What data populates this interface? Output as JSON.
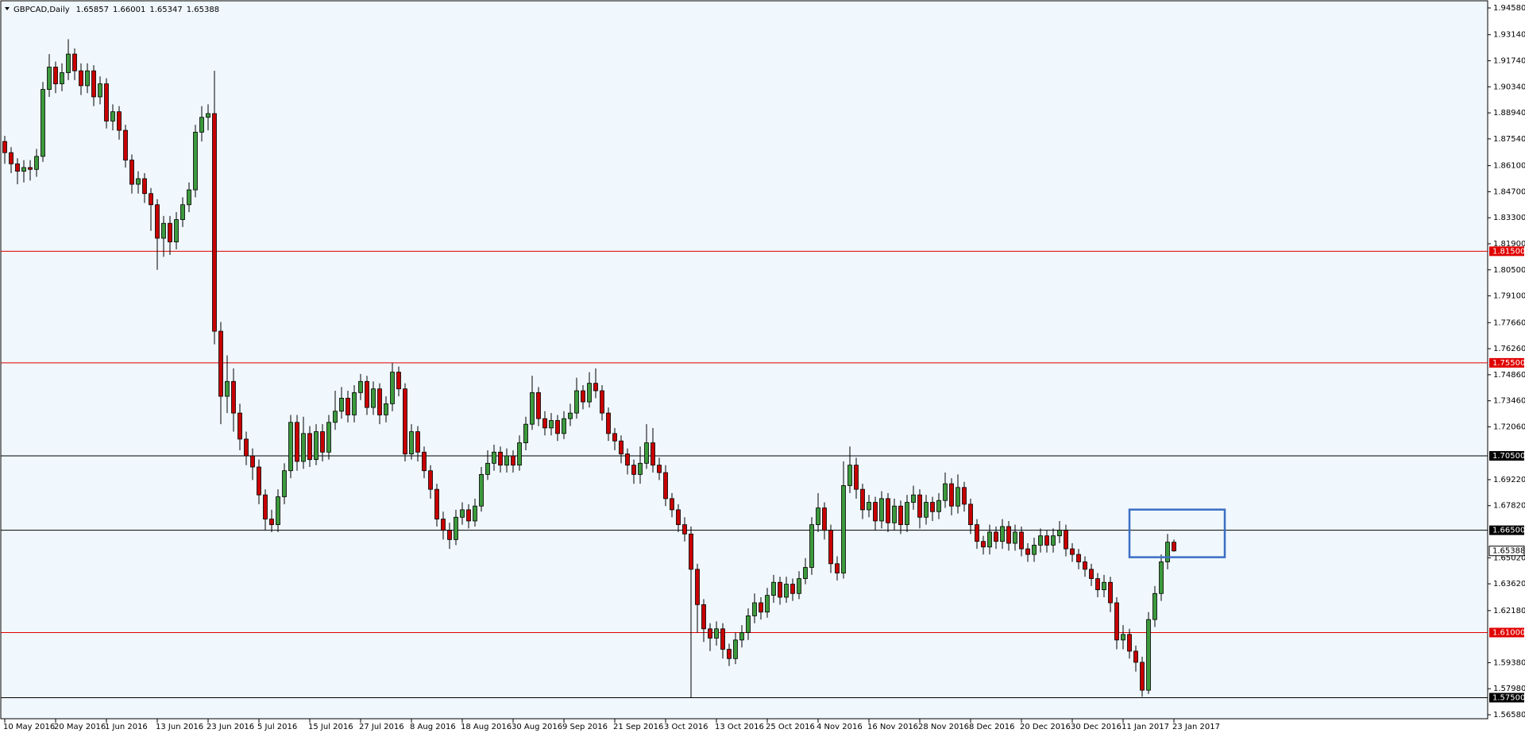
{
  "chart_data": {
    "type": "candlestick",
    "symbol": "GBPCAD,Daily",
    "categories": [
      "10 May 2016",
      null,
      null,
      null,
      null,
      null,
      null,
      null,
      "20 May 2016",
      null,
      null,
      null,
      null,
      null,
      null,
      null,
      "1 Jun 2016",
      null,
      null,
      null,
      null,
      null,
      null,
      null,
      "13 Jun 2016",
      null,
      null,
      null,
      null,
      null,
      null,
      null,
      "23 Jun 2016",
      null,
      null,
      null,
      null,
      null,
      null,
      null,
      "5 Jul 2016",
      null,
      null,
      null,
      null,
      null,
      null,
      null,
      "15 Jul 2016",
      null,
      null,
      null,
      null,
      null,
      null,
      null,
      "27 Jul 2016",
      null,
      null,
      null,
      null,
      null,
      null,
      null,
      "8 Aug 2016",
      null,
      null,
      null,
      null,
      null,
      null,
      null,
      "18 Aug 2016",
      null,
      null,
      null,
      null,
      null,
      null,
      null,
      "30 Aug 2016",
      null,
      null,
      null,
      null,
      null,
      null,
      null,
      "9 Sep 2016",
      null,
      null,
      null,
      null,
      null,
      null,
      null,
      "21 Sep 2016",
      null,
      null,
      null,
      null,
      null,
      null,
      null,
      "3 Oct 2016",
      null,
      null,
      null,
      null,
      null,
      null,
      null,
      "13 Oct 2016",
      null,
      null,
      null,
      null,
      null,
      null,
      null,
      "25 Oct 2016",
      null,
      null,
      null,
      null,
      null,
      null,
      null,
      "4 Nov 2016",
      null,
      null,
      null,
      null,
      null,
      null,
      null,
      "16 Nov 2016",
      null,
      null,
      null,
      null,
      null,
      null,
      null,
      "28 Nov 2016",
      null,
      null,
      null,
      null,
      null,
      null,
      null,
      "8 Dec 2016",
      null,
      null,
      null,
      null,
      null,
      null,
      null,
      "20 Dec 2016",
      null,
      null,
      null,
      null,
      null,
      null,
      null,
      "30 Dec 2016",
      null,
      null,
      null,
      null,
      null,
      null,
      null,
      "11 Jan 2017",
      null,
      null,
      null,
      null,
      null,
      null,
      null,
      "23 Jan 2017"
    ],
    "open": [
      1.874,
      1.868,
      1.862,
      1.858,
      1.86,
      1.859,
      1.866,
      1.902,
      1.914,
      1.905,
      1.911,
      1.921,
      1.912,
      1.904,
      1.912,
      1.898,
      1.905,
      1.885,
      1.89,
      1.88,
      1.864,
      1.851,
      1.854,
      1.846,
      1.84,
      1.822,
      1.83,
      1.82,
      1.832,
      1.84,
      1.848,
      1.879,
      1.887,
      1.889,
      1.772,
      1.737,
      1.745,
      1.728,
      1.714,
      1.705,
      1.699,
      1.684,
      1.671,
      1.668,
      1.683,
      1.697,
      1.723,
      1.702,
      1.717,
      1.703,
      1.718,
      1.707,
      1.723,
      1.729,
      1.736,
      1.727,
      1.739,
      1.745,
      1.731,
      1.741,
      1.727,
      1.733,
      1.75,
      1.741,
      1.706,
      1.718,
      1.707,
      1.697,
      1.687,
      1.671,
      1.665,
      1.66,
      1.672,
      1.676,
      1.67,
      1.678,
      1.695,
      1.701,
      1.707,
      1.7,
      1.705,
      1.7,
      1.712,
      1.722,
      1.739,
      1.725,
      1.72,
      1.724,
      1.717,
      1.725,
      1.728,
      1.74,
      1.734,
      1.744,
      1.74,
      1.728,
      1.717,
      1.713,
      1.706,
      1.7,
      1.695,
      1.701,
      1.712,
      1.7,
      1.696,
      1.682,
      1.676,
      1.668,
      1.663,
      1.644,
      1.625,
      1.612,
      1.607,
      1.612,
      1.601,
      1.596,
      1.606,
      1.61,
      1.619,
      1.626,
      1.621,
      1.63,
      1.637,
      1.629,
      1.636,
      1.631,
      1.639,
      1.645,
      1.668,
      1.677,
      1.665,
      1.647,
      1.642,
      1.689,
      1.7,
      1.687,
      1.676,
      1.68,
      1.67,
      1.682,
      1.669,
      1.678,
      1.668,
      1.68,
      1.684,
      1.672,
      1.68,
      1.675,
      1.681,
      1.69,
      1.678,
      1.688,
      1.679,
      1.668,
      1.659,
      1.656,
      1.664,
      1.659,
      1.667,
      1.658,
      1.664,
      1.655,
      1.652,
      1.657,
      1.662,
      1.657,
      1.662,
      1.665,
      1.655,
      1.652,
      1.648,
      1.644,
      1.639,
      1.633,
      1.637,
      1.626,
      1.606,
      1.609,
      1.6,
      1.594,
      1.579,
      1.617,
      1.631,
      1.648,
      1.65857
    ],
    "high": [
      1.877,
      1.871,
      1.865,
      1.864,
      1.864,
      1.87,
      1.906,
      1.921,
      1.917,
      1.916,
      1.929,
      1.924,
      1.916,
      1.916,
      1.915,
      1.909,
      1.908,
      1.894,
      1.893,
      1.883,
      1.867,
      1.858,
      1.857,
      1.849,
      1.843,
      1.834,
      1.834,
      1.836,
      1.844,
      1.852,
      1.883,
      1.893,
      1.894,
      1.912,
      1.777,
      1.759,
      1.752,
      1.733,
      1.718,
      1.709,
      1.703,
      1.687,
      1.676,
      1.687,
      1.701,
      1.727,
      1.727,
      1.726,
      1.721,
      1.722,
      1.722,
      1.727,
      1.74,
      1.742,
      1.74,
      1.743,
      1.749,
      1.748,
      1.745,
      1.744,
      1.737,
      1.755,
      1.753,
      1.744,
      1.722,
      1.721,
      1.71,
      1.7,
      1.69,
      1.675,
      1.669,
      1.676,
      1.68,
      1.679,
      1.682,
      1.699,
      1.708,
      1.711,
      1.71,
      1.709,
      1.708,
      1.716,
      1.726,
      1.748,
      1.742,
      1.729,
      1.728,
      1.727,
      1.729,
      1.733,
      1.747,
      1.743,
      1.75,
      1.752,
      1.743,
      1.731,
      1.72,
      1.716,
      1.709,
      1.703,
      1.71,
      1.722,
      1.72,
      1.704,
      1.7,
      1.685,
      1.679,
      1.672,
      1.667,
      1.647,
      1.628,
      1.615,
      1.616,
      1.615,
      1.604,
      1.61,
      1.614,
      1.623,
      1.631,
      1.629,
      1.634,
      1.641,
      1.64,
      1.64,
      1.639,
      1.643,
      1.65,
      1.672,
      1.685,
      1.68,
      1.668,
      1.651,
      1.702,
      1.71,
      1.704,
      1.69,
      1.684,
      1.683,
      1.686,
      1.685,
      1.682,
      1.681,
      1.684,
      1.689,
      1.687,
      1.684,
      1.683,
      1.685,
      1.696,
      1.693,
      1.695,
      1.691,
      1.682,
      1.671,
      1.662,
      1.668,
      1.667,
      1.671,
      1.67,
      1.668,
      1.667,
      1.658,
      1.661,
      1.666,
      1.665,
      1.666,
      1.67,
      1.668,
      1.658,
      1.655,
      1.651,
      1.647,
      1.642,
      1.641,
      1.64,
      1.629,
      1.614,
      1.612,
      1.603,
      1.597,
      1.621,
      1.635,
      1.652,
      1.663,
      1.66001
    ],
    "low": [
      1.862,
      1.857,
      1.851,
      1.852,
      1.853,
      1.855,
      1.863,
      1.898,
      1.9,
      1.901,
      1.907,
      1.907,
      1.899,
      1.9,
      1.893,
      1.894,
      1.881,
      1.88,
      1.875,
      1.86,
      1.846,
      1.846,
      1.841,
      1.826,
      1.805,
      1.812,
      1.813,
      1.816,
      1.828,
      1.836,
      1.844,
      1.874,
      1.88,
      1.765,
      1.722,
      1.728,
      1.718,
      1.708,
      1.7,
      1.692,
      1.679,
      1.665,
      1.664,
      1.664,
      1.679,
      1.693,
      1.697,
      1.698,
      1.699,
      1.7,
      1.702,
      1.703,
      1.719,
      1.725,
      1.723,
      1.723,
      1.735,
      1.727,
      1.727,
      1.722,
      1.723,
      1.729,
      1.737,
      1.702,
      1.703,
      1.702,
      1.693,
      1.682,
      1.667,
      1.66,
      1.655,
      1.657,
      1.668,
      1.666,
      1.667,
      1.675,
      1.692,
      1.697,
      1.696,
      1.696,
      1.696,
      1.697,
      1.708,
      1.719,
      1.721,
      1.716,
      1.716,
      1.713,
      1.714,
      1.721,
      1.725,
      1.73,
      1.731,
      1.736,
      1.724,
      1.713,
      1.708,
      1.701,
      1.695,
      1.69,
      1.69,
      1.698,
      1.696,
      1.692,
      1.678,
      1.672,
      1.664,
      1.659,
      1.575,
      1.61,
      1.605,
      1.6,
      1.603,
      1.596,
      1.592,
      1.593,
      1.602,
      1.606,
      1.615,
      1.617,
      1.618,
      1.626,
      1.625,
      1.626,
      1.627,
      1.628,
      1.636,
      1.641,
      1.664,
      1.66,
      1.642,
      1.638,
      1.639,
      1.685,
      1.682,
      1.671,
      1.672,
      1.665,
      1.666,
      1.664,
      1.665,
      1.663,
      1.664,
      1.676,
      1.666,
      1.668,
      1.67,
      1.671,
      1.677,
      1.673,
      1.674,
      1.675,
      1.663,
      1.655,
      1.652,
      1.652,
      1.655,
      1.655,
      1.654,
      1.654,
      1.651,
      1.648,
      1.648,
      1.653,
      1.653,
      1.653,
      1.658,
      1.651,
      1.648,
      1.644,
      1.64,
      1.635,
      1.629,
      1.629,
      1.621,
      1.601,
      1.601,
      1.596,
      1.589,
      1.5755,
      1.577,
      1.613,
      1.627,
      1.644,
      1.65347
    ],
    "close": [
      1.868,
      1.862,
      1.858,
      1.86,
      1.859,
      1.866,
      1.902,
      1.914,
      1.905,
      1.911,
      1.921,
      1.912,
      1.904,
      1.912,
      1.898,
      1.905,
      1.885,
      1.89,
      1.88,
      1.864,
      1.851,
      1.854,
      1.846,
      1.84,
      1.822,
      1.83,
      1.82,
      1.832,
      1.84,
      1.848,
      1.879,
      1.887,
      1.889,
      1.772,
      1.737,
      1.745,
      1.728,
      1.714,
      1.705,
      1.699,
      1.684,
      1.671,
      1.668,
      1.683,
      1.697,
      1.723,
      1.702,
      1.717,
      1.703,
      1.718,
      1.707,
      1.723,
      1.729,
      1.736,
      1.727,
      1.739,
      1.745,
      1.731,
      1.741,
      1.727,
      1.733,
      1.75,
      1.741,
      1.706,
      1.718,
      1.707,
      1.697,
      1.687,
      1.671,
      1.665,
      1.66,
      1.672,
      1.676,
      1.67,
      1.678,
      1.695,
      1.701,
      1.707,
      1.7,
      1.705,
      1.7,
      1.712,
      1.722,
      1.739,
      1.725,
      1.72,
      1.724,
      1.717,
      1.725,
      1.728,
      1.74,
      1.734,
      1.744,
      1.74,
      1.728,
      1.717,
      1.713,
      1.706,
      1.7,
      1.695,
      1.701,
      1.712,
      1.7,
      1.696,
      1.682,
      1.676,
      1.668,
      1.663,
      1.644,
      1.625,
      1.612,
      1.607,
      1.612,
      1.601,
      1.596,
      1.606,
      1.61,
      1.619,
      1.626,
      1.621,
      1.63,
      1.637,
      1.629,
      1.636,
      1.631,
      1.639,
      1.645,
      1.668,
      1.677,
      1.665,
      1.647,
      1.642,
      1.689,
      1.7,
      1.687,
      1.676,
      1.68,
      1.67,
      1.682,
      1.669,
      1.678,
      1.668,
      1.68,
      1.684,
      1.672,
      1.68,
      1.675,
      1.681,
      1.69,
      1.678,
      1.688,
      1.679,
      1.668,
      1.659,
      1.656,
      1.664,
      1.659,
      1.667,
      1.658,
      1.664,
      1.655,
      1.652,
      1.657,
      1.662,
      1.657,
      1.662,
      1.665,
      1.655,
      1.652,
      1.648,
      1.644,
      1.639,
      1.633,
      1.637,
      1.626,
      1.606,
      1.609,
      1.6,
      1.594,
      1.579,
      1.617,
      1.631,
      1.648,
      1.6586,
      1.65388
    ],
    "bull_color": "#3c9a3c",
    "bear_color": "#c80000",
    "ylim": [
      1.5658,
      1.9458
    ],
    "yticks": [
      {
        "value": 1.9458,
        "label": "1.94580"
      },
      {
        "value": 1.9314,
        "label": "1.93140"
      },
      {
        "value": 1.9174,
        "label": "1.91740"
      },
      {
        "value": 1.9034,
        "label": "1.90340"
      },
      {
        "value": 1.8894,
        "label": "1.88940"
      },
      {
        "value": 1.8754,
        "label": "1.87540"
      },
      {
        "value": 1.861,
        "label": "1.86100"
      },
      {
        "value": 1.847,
        "label": "1.84700"
      },
      {
        "value": 1.833,
        "label": "1.83300"
      },
      {
        "value": 1.819,
        "label": "1.81900"
      },
      {
        "value": 1.805,
        "label": "1.80500"
      },
      {
        "value": 1.791,
        "label": "1.79100"
      },
      {
        "value": 1.7766,
        "label": "1.77660"
      },
      {
        "value": 1.7626,
        "label": "1.76260"
      },
      {
        "value": 1.7486,
        "label": "1.74860"
      },
      {
        "value": 1.7346,
        "label": "1.73460"
      },
      {
        "value": 1.7206,
        "label": "1.72060"
      },
      {
        "value": 1.6922,
        "label": "1.69220"
      },
      {
        "value": 1.6782,
        "label": "1.67820"
      },
      {
        "value": 1.6502,
        "label": "1.65020"
      },
      {
        "value": 1.6362,
        "label": "1.63620"
      },
      {
        "value": 1.6218,
        "label": "1.62180"
      },
      {
        "value": 1.5938,
        "label": "1.59380"
      },
      {
        "value": 1.5798,
        "label": "1.57980"
      },
      {
        "value": 1.5658,
        "label": "1.56580"
      }
    ],
    "levels": [
      {
        "value": 1.815,
        "label": "1.81500",
        "color": "#e00000"
      },
      {
        "value": 1.755,
        "label": "1.75500",
        "color": "#e00000"
      },
      {
        "value": 1.705,
        "label": "1.70500",
        "color": "#000000"
      },
      {
        "value": 1.665,
        "label": "1.66500",
        "color": "#000000"
      },
      {
        "value": 1.61,
        "label": "1.61000",
        "color": "#e00000"
      },
      {
        "value": 1.575,
        "label": "1.57500",
        "color": "#000000"
      }
    ],
    "box": {
      "price_range": [
        1.6505,
        1.6761
      ],
      "bar_range": [
        177,
        192
      ],
      "color": "#3a6fc4"
    }
  }
}
